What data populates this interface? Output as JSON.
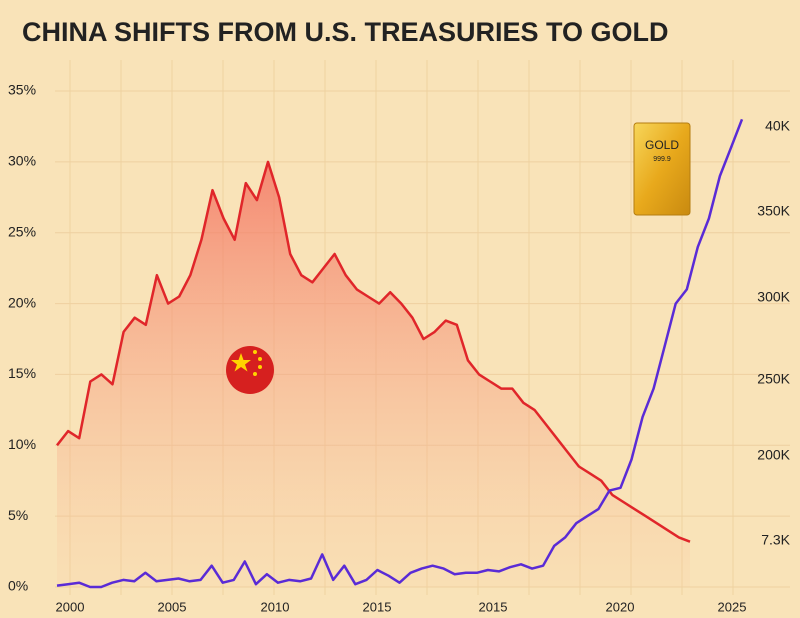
{
  "chart_data": {
    "type": "line",
    "title": "CHINA SHIFTS FROM U.S. TREASURIES TO GOLD",
    "ylim": [
      0,
      35
    ],
    "yticks": [
      {
        "value": 0,
        "label": "0%"
      },
      {
        "value": 5,
        "label": "5%"
      },
      {
        "value": 10,
        "label": "10%"
      },
      {
        "value": 15,
        "label": "15%"
      },
      {
        "value": 20,
        "label": "20%"
      },
      {
        "value": 25,
        "label": "25%"
      },
      {
        "value": 30,
        "label": "30%"
      },
      {
        "value": 35,
        "label": "35%"
      }
    ],
    "x_labels": [
      "2000",
      "2005",
      "2010",
      "2015",
      "2015",
      "2020",
      "2025"
    ],
    "right_labels": [
      "40K",
      "350K",
      "300K",
      "250K",
      "200K",
      "7.3K"
    ],
    "gold_bar": {
      "label": "GOLD",
      "purity": "999.9"
    },
    "series": [
      {
        "color": "#e0262a",
        "values": [
          10,
          11,
          10.5,
          14.5,
          15,
          14.3,
          18,
          19,
          18.5,
          22,
          20,
          20.5,
          22,
          24.5,
          28,
          26,
          24.5,
          28.5,
          27.3,
          30,
          27.5,
          23.5,
          22,
          21.5,
          22.5,
          23.5,
          22,
          21,
          20.5,
          20,
          20.8,
          20,
          19,
          17.5,
          18,
          18.8,
          18.5,
          16,
          15,
          14.5,
          14,
          14,
          13,
          12.5,
          11.5,
          10.5,
          9.5,
          8.5,
          8,
          7.5,
          6.5,
          6,
          5.5,
          5,
          4.5,
          4,
          3.5,
          3.2
        ]
      },
      {
        "color": "#5a2bd6",
        "values": [
          0.1,
          0.2,
          0.3,
          0,
          0,
          0.3,
          0.5,
          0.4,
          1,
          0.4,
          0.5,
          0.6,
          0.4,
          0.5,
          1.5,
          0.3,
          0.5,
          1.8,
          0.2,
          0.9,
          0.3,
          0.5,
          0.4,
          0.6,
          2.3,
          0.5,
          1.5,
          0.2,
          0.5,
          1.2,
          0.8,
          0.3,
          1,
          1.3,
          1.5,
          1.3,
          0.9,
          1,
          1,
          1.2,
          1.1,
          1.4,
          1.6,
          1.3,
          1.5,
          2.9,
          3.5,
          4.5,
          5,
          5.5,
          6.8,
          7,
          9,
          12,
          14,
          17,
          20,
          21,
          24,
          26,
          29,
          31,
          33
        ]
      }
    ]
  }
}
